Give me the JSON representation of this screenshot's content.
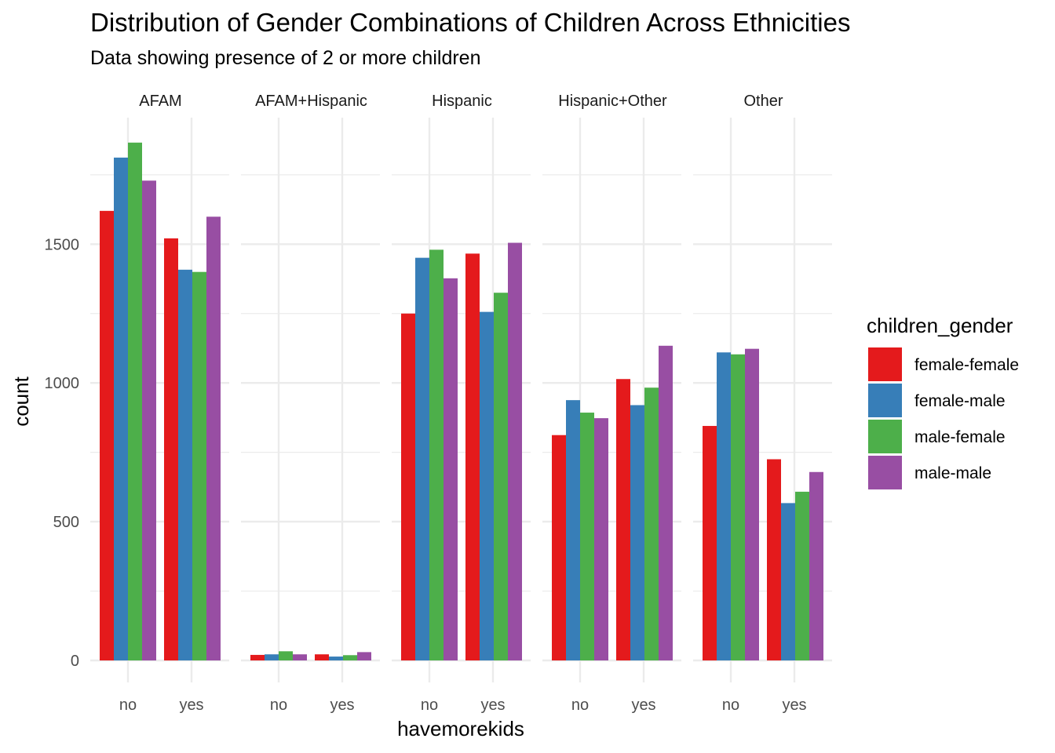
{
  "chart_data": {
    "type": "bar",
    "title": "Distribution of Gender Combinations of Children Across Ethnicities",
    "subtitle": "Data showing presence of 2 or more children",
    "xlabel": "havemorekids",
    "ylabel": "count",
    "ylim": [
      0,
      1900
    ],
    "y_ticks": [
      0,
      500,
      1000,
      1500
    ],
    "grid": true,
    "facets": [
      "AFAM",
      "AFAM+Hispanic",
      "Hispanic",
      "Hispanic+Other",
      "Other"
    ],
    "categories": [
      "no",
      "yes"
    ],
    "legend": {
      "title": "children_gender",
      "placement": "right"
    },
    "series": [
      {
        "name": "female-female",
        "color": "#E41A1C",
        "values": {
          "AFAM": [
            1620,
            1521
          ],
          "AFAM+Hispanic": [
            20,
            22
          ],
          "Hispanic": [
            1250,
            1466
          ],
          "Hispanic+Other": [
            812,
            1014
          ],
          "Other": [
            845,
            725
          ]
        }
      },
      {
        "name": "female-male",
        "color": "#377EB8",
        "values": {
          "AFAM": [
            1812,
            1408
          ],
          "AFAM+Hispanic": [
            22,
            14
          ],
          "Hispanic": [
            1451,
            1256
          ],
          "Hispanic+Other": [
            938,
            920
          ],
          "Other": [
            1110,
            567
          ]
        }
      },
      {
        "name": "male-female",
        "color": "#4DAF4A",
        "values": {
          "AFAM": [
            1866,
            1400
          ],
          "AFAM+Hispanic": [
            33,
            19
          ],
          "Hispanic": [
            1480,
            1325
          ],
          "Hispanic+Other": [
            893,
            983
          ],
          "Other": [
            1103,
            608
          ]
        }
      },
      {
        "name": "male-male",
        "color": "#984EA3",
        "values": {
          "AFAM": [
            1729,
            1599
          ],
          "AFAM+Hispanic": [
            22,
            30
          ],
          "Hispanic": [
            1377,
            1505
          ],
          "Hispanic+Other": [
            873,
            1134
          ],
          "Other": [
            1123,
            679
          ]
        }
      }
    ]
  }
}
